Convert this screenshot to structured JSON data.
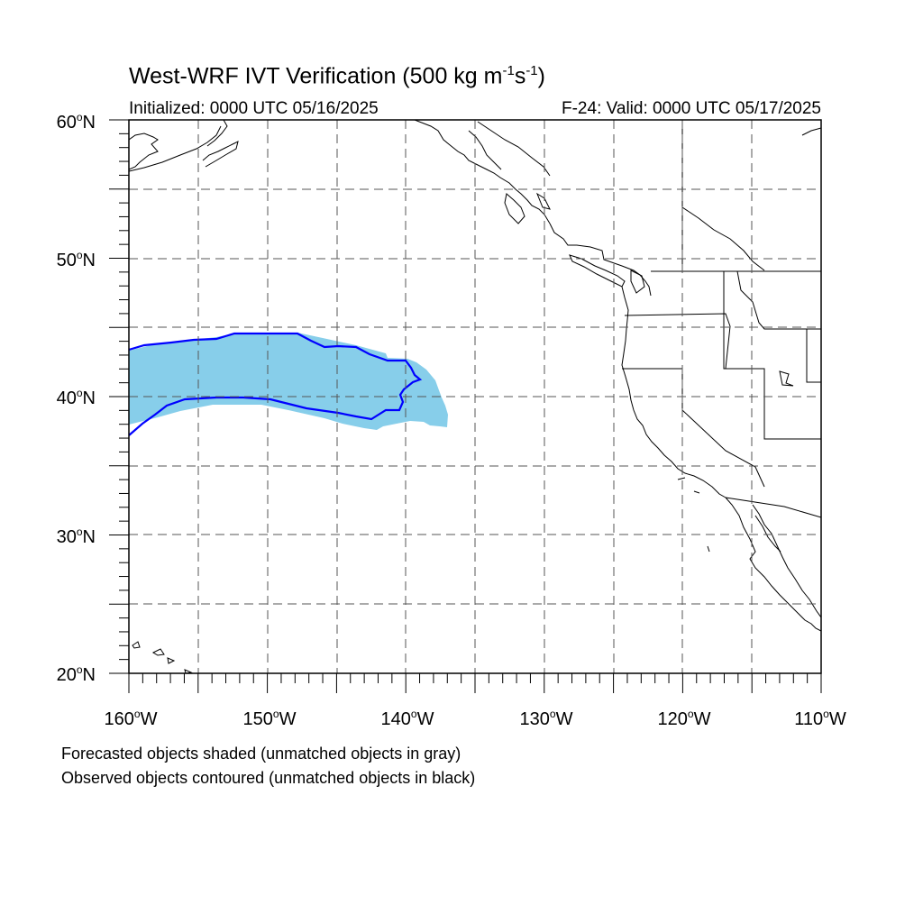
{
  "title": {
    "main": "West-WRF IVT Verification (500 kg m",
    "sup1": "-1",
    "mid": "s",
    "sup2": "-1",
    "end": ")"
  },
  "subtitle_left": "Initialized: 0000 UTC 05/16/2025",
  "subtitle_right": "F-24: Valid: 0000 UTC 05/17/2025",
  "axes": {
    "lat_labels": [
      "60",
      "50",
      "40",
      "30",
      "20"
    ],
    "lon_labels": [
      "160",
      "150",
      "140",
      "130",
      "120",
      "110"
    ],
    "lat_suffix": "N",
    "lon_suffix": "W",
    "degree": "o",
    "lat_range": [
      20,
      60
    ],
    "lon_range": [
      -160,
      -110
    ],
    "gridlines": "dashed every 5 degrees"
  },
  "legend_notes": [
    "Forecasted objects shaded (unmatched objects in gray)",
    "Observed objects contoured (unmatched objects in black)"
  ],
  "objects": {
    "forecast_fill_color": "#87ceea",
    "observed_contour_color": "#0000ff"
  }
}
